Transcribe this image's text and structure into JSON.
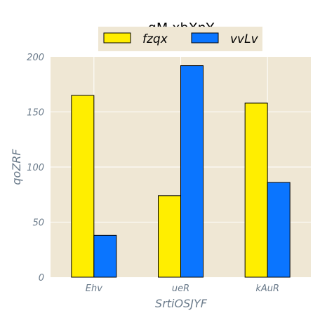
{
  "chart_data": {
    "type": "bar",
    "title": "qM xbXnY",
    "xlabel": "SrtiOSJYF",
    "ylabel": "qoZRF",
    "categories": [
      "Ehv",
      "ueR",
      "kAuR"
    ],
    "series": [
      {
        "name": "fzqx",
        "values": [
          165,
          74,
          158
        ],
        "color": "#ffee00"
      },
      {
        "name": "vvLv",
        "values": [
          38,
          192,
          86
        ],
        "color": "#0a75ff"
      }
    ],
    "ylim": [
      0,
      200
    ],
    "yticks": [
      0,
      50,
      100,
      150,
      200
    ],
    "grid": true,
    "legend_position": "top-center",
    "colors": {
      "plot_background": "#efe7d4",
      "grid": "#ffffff",
      "axis_text": "#6b7b8b"
    }
  }
}
